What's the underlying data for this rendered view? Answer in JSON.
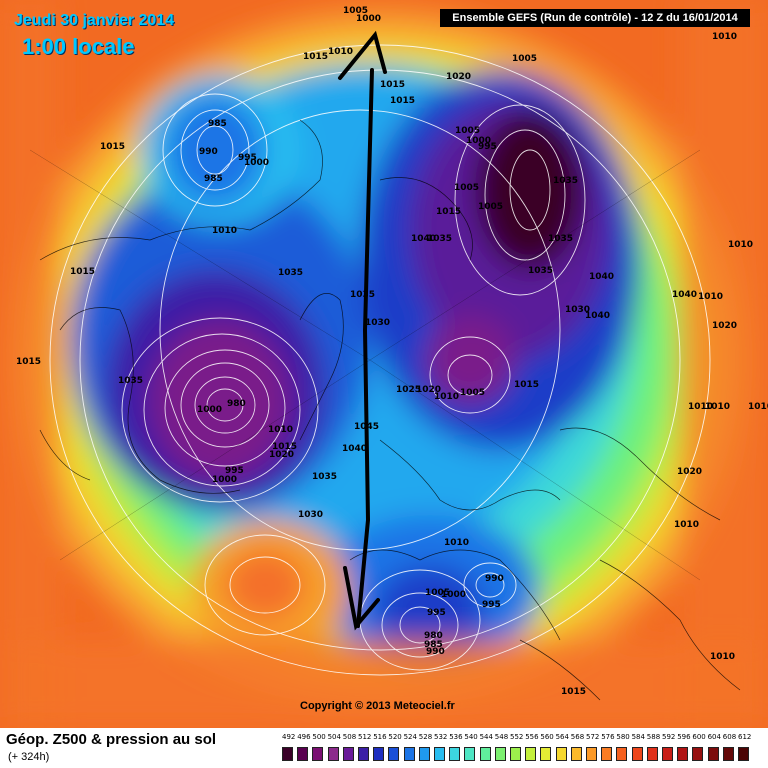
{
  "header": {
    "date": "Jeudi 30 janvier 2014",
    "time": "1:00 locale",
    "run": "Ensemble GEFS (Run de contrôle)  -  12 Z du 16/01/2014"
  },
  "footer": {
    "title": "Géop. Z500 & pression au sol",
    "subtitle": "(+ 324h)",
    "copyright": "Copyright © 2013 Meteociel.fr"
  },
  "scale": {
    "ticks": [
      "492",
      "496",
      "500",
      "504",
      "508",
      "512",
      "516",
      "520",
      "524",
      "528",
      "532",
      "536",
      "540",
      "544",
      "548",
      "552",
      "556",
      "560",
      "564",
      "568",
      "572",
      "576",
      "580",
      "584",
      "588",
      "592",
      "596",
      "600",
      "604",
      "608",
      "612"
    ],
    "colors": [
      "#3a0028",
      "#5a0050",
      "#7a0f72",
      "#8c2a8c",
      "#6a1a9a",
      "#3c1fa6",
      "#1e2ec0",
      "#1a4fd8",
      "#1c74e6",
      "#1f9aee",
      "#28bdf0",
      "#3cd6e0",
      "#4ee6c4",
      "#60ee9c",
      "#7cf070",
      "#9cf04c",
      "#c4f03c",
      "#e4ec34",
      "#f6d82e",
      "#fcba2a",
      "#fc9a26",
      "#fa7c22",
      "#f6601e",
      "#ee461c",
      "#e0301a",
      "#c81e18",
      "#b01414",
      "#961010",
      "#7c0c0c",
      "#640808",
      "#4c0404"
    ]
  },
  "pressure_labels": [
    {
      "text": "1005"
    },
    {
      "text": "1000"
    },
    {
      "text": "1015"
    },
    {
      "text": "1010"
    },
    {
      "text": "1020"
    },
    {
      "text": "1005"
    },
    {
      "text": "1010"
    },
    {
      "text": "1015"
    },
    {
      "text": "1015"
    },
    {
      "text": "985"
    },
    {
      "text": "990"
    },
    {
      "text": "995"
    },
    {
      "text": "1000"
    },
    {
      "text": "985"
    },
    {
      "text": "1015"
    },
    {
      "text": "1010"
    },
    {
      "text": "1015"
    },
    {
      "text": "1035"
    },
    {
      "text": "1015"
    },
    {
      "text": "1035"
    },
    {
      "text": "980"
    },
    {
      "text": "1000"
    },
    {
      "text": "1010"
    },
    {
      "text": "1015"
    },
    {
      "text": "1020"
    },
    {
      "text": "995"
    },
    {
      "text": "1000"
    },
    {
      "text": "1035"
    },
    {
      "text": "1030"
    },
    {
      "text": "1035"
    },
    {
      "text": "1045"
    },
    {
      "text": "1040"
    },
    {
      "text": "1030"
    },
    {
      "text": "1005"
    },
    {
      "text": "1000"
    },
    {
      "text": "995"
    },
    {
      "text": "1005"
    },
    {
      "text": "1015"
    },
    {
      "text": "1005"
    },
    {
      "text": "1035"
    },
    {
      "text": "1040"
    },
    {
      "text": "1035"
    },
    {
      "text": "1035"
    },
    {
      "text": "1040"
    },
    {
      "text": "1035"
    },
    {
      "text": "1040"
    },
    {
      "text": "1030"
    },
    {
      "text": "1025"
    },
    {
      "text": "1020"
    },
    {
      "text": "1010"
    },
    {
      "text": "1005"
    },
    {
      "text": "1015"
    },
    {
      "text": "1010"
    },
    {
      "text": "1010"
    },
    {
      "text": "1010"
    },
    {
      "text": "1020"
    },
    {
      "text": "1010"
    },
    {
      "text": "1040"
    },
    {
      "text": "1020"
    },
    {
      "text": "1010"
    },
    {
      "text": "1010"
    },
    {
      "text": "990"
    },
    {
      "text": "995"
    },
    {
      "text": "1005"
    },
    {
      "text": "1000"
    },
    {
      "text": "995"
    },
    {
      "text": "980"
    },
    {
      "text": "985"
    },
    {
      "text": "990"
    },
    {
      "text": "1010"
    },
    {
      "text": "1015"
    },
    {
      "text": "1010"
    }
  ]
}
